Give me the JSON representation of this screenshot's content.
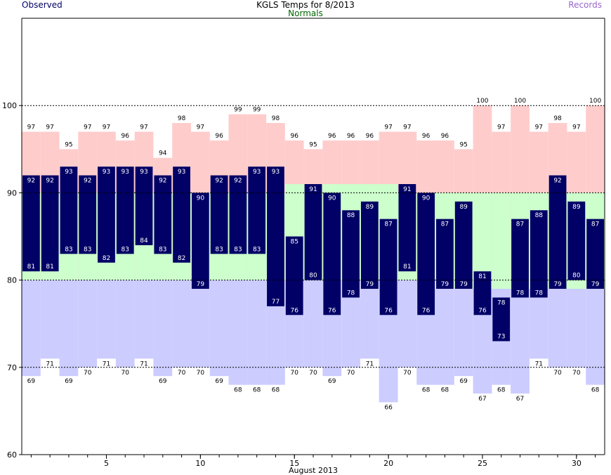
{
  "header": {
    "title": "KGLS Temps for 8/2013",
    "observed_label": "Observed",
    "normals_label": "Normals",
    "records_label": "Records"
  },
  "colors": {
    "record_high_fill": "#ffcccc",
    "record_low_fill": "#ccccff",
    "normal_fill": "#ccffcc",
    "observed_fill": "#000066",
    "grid_line": "#000000",
    "normal_line": "#00aa00",
    "observed_text": "#000066",
    "normals_text": "#006600",
    "records_text": "#9966cc"
  },
  "chart_data": {
    "type": "bar",
    "title": "KGLS Temps for 8/2013",
    "xlabel": "August 2013",
    "ylabel": "",
    "ylim": [
      60,
      110
    ],
    "xlim": [
      0.5,
      31.5
    ],
    "yticks": [
      60,
      70,
      80,
      90,
      100
    ],
    "xticks": [
      5,
      10,
      15,
      20,
      25,
      30
    ],
    "days": [
      1,
      2,
      3,
      4,
      5,
      6,
      7,
      8,
      9,
      10,
      11,
      12,
      13,
      14,
      15,
      16,
      17,
      18,
      19,
      20,
      21,
      22,
      23,
      24,
      25,
      26,
      27,
      28,
      29,
      30,
      31
    ],
    "observed_high": [
      92,
      92,
      93,
      92,
      93,
      93,
      93,
      92,
      93,
      90,
      92,
      92,
      93,
      93,
      85,
      91,
      90,
      88,
      89,
      87,
      91,
      90,
      87,
      89,
      81,
      78,
      87,
      88,
      92,
      89,
      87
    ],
    "observed_low": [
      81,
      81,
      83,
      83,
      82,
      83,
      84,
      83,
      82,
      79,
      83,
      83,
      83,
      77,
      76,
      80,
      76,
      78,
      79,
      76,
      81,
      76,
      79,
      79,
      76,
      73,
      78,
      78,
      79,
      80,
      79
    ],
    "normal_high": [
      90,
      90,
      90,
      90,
      90,
      90,
      90,
      90,
      90,
      90,
      90,
      90,
      90,
      90,
      91,
      91,
      91,
      91,
      91,
      91,
      90,
      90,
      90,
      90,
      90,
      90,
      90,
      90,
      90,
      90,
      90
    ],
    "normal_low": [
      80,
      80,
      80,
      80,
      80,
      80,
      80,
      80,
      80,
      80,
      80,
      80,
      80,
      80,
      80,
      80,
      80,
      80,
      80,
      80,
      80,
      80,
      79,
      79,
      79,
      79,
      79,
      79,
      79,
      79,
      79
    ],
    "record_high": [
      97,
      97,
      95,
      97,
      97,
      96,
      97,
      94,
      98,
      97,
      96,
      99,
      99,
      98,
      96,
      95,
      96,
      96,
      96,
      97,
      97,
      96,
      96,
      95,
      100,
      97,
      100,
      97,
      98,
      97,
      100
    ],
    "record_low": [
      69,
      71,
      69,
      70,
      71,
      70,
      71,
      69,
      70,
      70,
      69,
      68,
      68,
      68,
      70,
      70,
      69,
      70,
      71,
      66,
      70,
      68,
      68,
      69,
      67,
      68,
      67,
      71,
      70,
      70,
      68
    ],
    "series": [
      {
        "name": "Observed"
      },
      {
        "name": "Normals"
      },
      {
        "name": "Records"
      }
    ],
    "grid": "dashed horizontal at 70, 80, 90, 100",
    "legend": "top"
  }
}
